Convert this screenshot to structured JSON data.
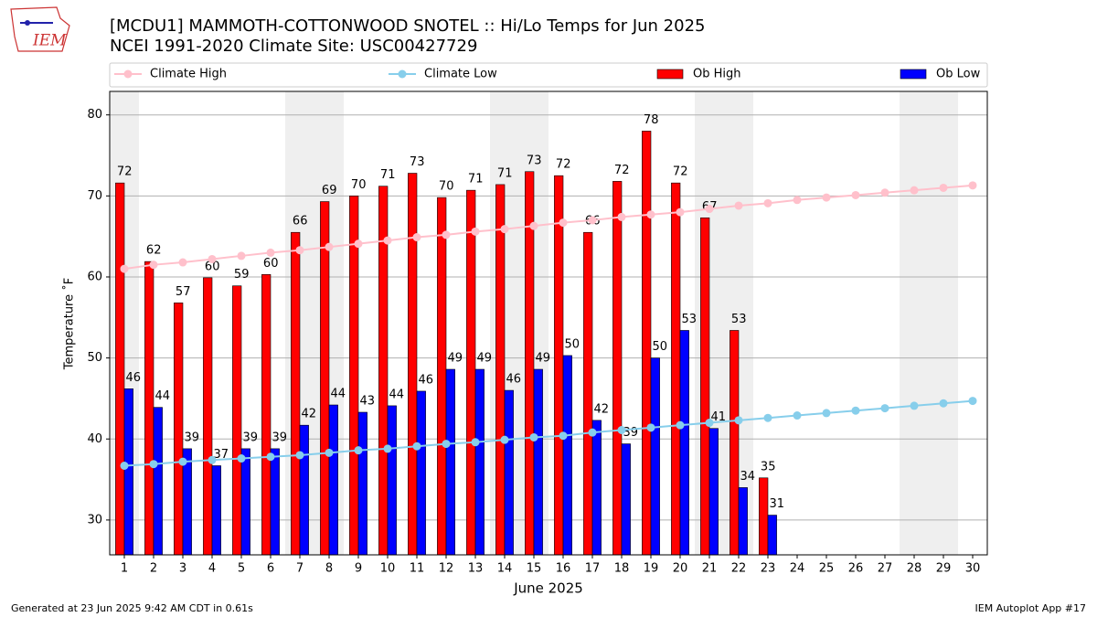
{
  "logo_text": "IEM",
  "footer_left": "Generated at 23 Jun 2025 9:42 AM CDT in 0.61s",
  "footer_right": "IEM Autoplot App #17",
  "chart_data": {
    "type": "bar",
    "title": "[MCDU1] MAMMOTH-COTTONWOOD SNOTEL :: Hi/Lo Temps for Jun 2025",
    "subtitle": "NCEI 1991-2020 Climate Site: USC00427729",
    "x_label": "June 2025",
    "y_label": "Temperature ˚F",
    "categories": [
      "1",
      "2",
      "3",
      "4",
      "5",
      "6",
      "7",
      "8",
      "9",
      "10",
      "11",
      "12",
      "13",
      "14",
      "15",
      "16",
      "17",
      "18",
      "19",
      "20",
      "21",
      "22",
      "23",
      "24",
      "25",
      "26",
      "27",
      "28",
      "29",
      "30"
    ],
    "shaded_days": [
      1,
      7,
      8,
      14,
      15,
      21,
      22,
      28,
      29
    ],
    "xlim": [
      0.5,
      30.5
    ],
    "ylim": [
      25.7,
      82.9
    ],
    "yticks": [
      30,
      40,
      50,
      60,
      70,
      80
    ],
    "grid": true,
    "legend": "top",
    "series": [
      {
        "name": "Climate High",
        "kind": "line",
        "color": "#ffc0cb",
        "values": [
          61.0,
          61.5,
          61.8,
          62.2,
          62.6,
          63.0,
          63.3,
          63.7,
          64.1,
          64.5,
          64.9,
          65.2,
          65.6,
          65.9,
          66.3,
          66.7,
          67.0,
          67.4,
          67.7,
          68.0,
          68.4,
          68.8,
          69.1,
          69.5,
          69.8,
          70.1,
          70.4,
          70.7,
          71.0,
          71.3
        ]
      },
      {
        "name": "Climate Low",
        "kind": "line",
        "color": "#87ceeb",
        "values": [
          36.7,
          36.9,
          37.2,
          37.4,
          37.6,
          37.8,
          38.0,
          38.3,
          38.6,
          38.8,
          39.1,
          39.4,
          39.6,
          39.9,
          40.2,
          40.4,
          40.8,
          41.1,
          41.4,
          41.7,
          42.0,
          42.3,
          42.6,
          42.9,
          43.2,
          43.5,
          43.8,
          44.1,
          44.4,
          44.7
        ]
      },
      {
        "name": "Ob High",
        "kind": "bar",
        "color": "#ff0000",
        "values": [
          71.6,
          61.9,
          56.8,
          59.9,
          58.9,
          60.3,
          65.5,
          69.3,
          70.0,
          71.2,
          72.8,
          69.8,
          70.7,
          71.4,
          73.0,
          72.5,
          65.5,
          71.8,
          78.0,
          71.6,
          67.3,
          53.4,
          35.2,
          null,
          null,
          null,
          null,
          null,
          null,
          null
        ],
        "value_labels": [
          "72",
          "62",
          "57",
          "60",
          "59",
          "60",
          "66",
          "69",
          "70",
          "71",
          "73",
          "70",
          "71",
          "71",
          "73",
          "72",
          "66",
          "72",
          "78",
          "72",
          "67",
          "53",
          "35",
          null,
          null,
          null,
          null,
          null,
          null,
          null
        ]
      },
      {
        "name": "Ob Low",
        "kind": "bar",
        "color": "#0000ff",
        "values": [
          46.2,
          43.9,
          38.8,
          36.7,
          38.8,
          38.8,
          41.7,
          44.2,
          43.3,
          44.1,
          45.9,
          48.6,
          48.6,
          46.0,
          48.6,
          50.3,
          42.3,
          39.4,
          50.0,
          53.4,
          41.3,
          34.0,
          30.6,
          null,
          null,
          null,
          null,
          null,
          null,
          null
        ],
        "value_labels": [
          "46",
          "44",
          "39",
          "37",
          "39",
          "39",
          "42",
          "44",
          "43",
          "44",
          "46",
          "49",
          "49",
          "46",
          "49",
          "50",
          "42",
          "39",
          "50",
          "53",
          "41",
          "34",
          "31",
          null,
          null,
          null,
          null,
          null,
          null,
          null
        ]
      }
    ]
  }
}
